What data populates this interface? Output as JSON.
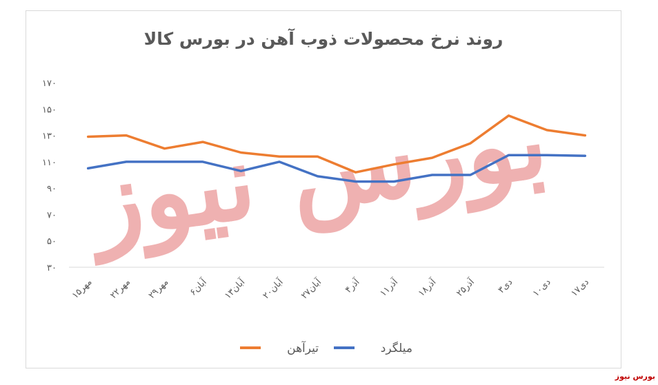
{
  "brand": {
    "footer": "بورس نیوز"
  },
  "colors": {
    "tir_ahan": "#ED7D31",
    "milgard": "#4472C4",
    "watermark": "#e06666"
  },
  "watermark_text": "بورس نیوز",
  "chart_data": {
    "type": "line",
    "title": "روند نرخ محصولات ذوب آهن در بورس کالا",
    "categories": [
      "۱۵مهر",
      "۲۲مهر",
      "۲۹مهر",
      "۶آبان",
      "۱۳آبان",
      "۲۰آبان",
      "۲۷آبان",
      "۴آذر",
      "۱۱آذر",
      "۱۸آذر",
      "۲۵آذر",
      "۳دی",
      "۱۰دی",
      "۱۷دی"
    ],
    "y_ticks": [
      "۱۷۰",
      "۱۵۰",
      "۱۳۰",
      "۱۱۰",
      "۹۰",
      "۷۰",
      "۵۰",
      "۳۰"
    ],
    "ylim": [
      30,
      170
    ],
    "grid": false,
    "legend_position": "bottom",
    "series": [
      {
        "name": "تیرآهن",
        "color": "#ED7D31",
        "values": [
          129,
          130,
          120,
          125,
          117,
          114,
          114,
          102,
          108,
          113,
          124,
          145,
          134,
          130
        ]
      },
      {
        "name": "میلگرد",
        "color": "#4472C4",
        "values": [
          105,
          110,
          110,
          110,
          103,
          110,
          99,
          95,
          95,
          100,
          100,
          115,
          115,
          114.5
        ]
      }
    ]
  }
}
